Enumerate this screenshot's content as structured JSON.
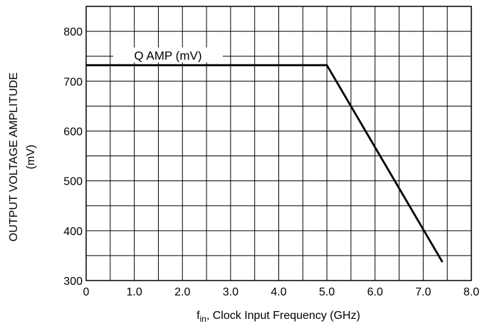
{
  "chart_data": {
    "type": "line",
    "title": "",
    "xlabel": {
      "prefix": "f",
      "subscript": "in",
      "rest": ", Clock Input Frequency (GHz)"
    },
    "ylabel": [
      "OUTPUT VOLTAGE AMPLITUDE",
      "(mV)"
    ],
    "xlim": [
      0,
      8.0
    ],
    "ylim": [
      300,
      850
    ],
    "x_ticks": [
      {
        "value": 0,
        "label": "0"
      },
      {
        "value": 1,
        "label": "1.0"
      },
      {
        "value": 2,
        "label": "2.0"
      },
      {
        "value": 3,
        "label": "3.0"
      },
      {
        "value": 4,
        "label": "4.0"
      },
      {
        "value": 5,
        "label": "5.0"
      },
      {
        "value": 6,
        "label": "6.0"
      },
      {
        "value": 7,
        "label": "7.0"
      },
      {
        "value": 8,
        "label": "8.0"
      }
    ],
    "y_ticks": [
      {
        "value": 300,
        "label": "300"
      },
      {
        "value": 400,
        "label": "400"
      },
      {
        "value": 500,
        "label": "500"
      },
      {
        "value": 600,
        "label": "600"
      },
      {
        "value": 700,
        "label": "700"
      },
      {
        "value": 800,
        "label": "800"
      }
    ],
    "grid": true,
    "series": [
      {
        "annotation": "Q AMP (mV)",
        "x": [
          0,
          5.0,
          7.4
        ],
        "y": [
          732,
          732,
          337
        ]
      }
    ]
  }
}
